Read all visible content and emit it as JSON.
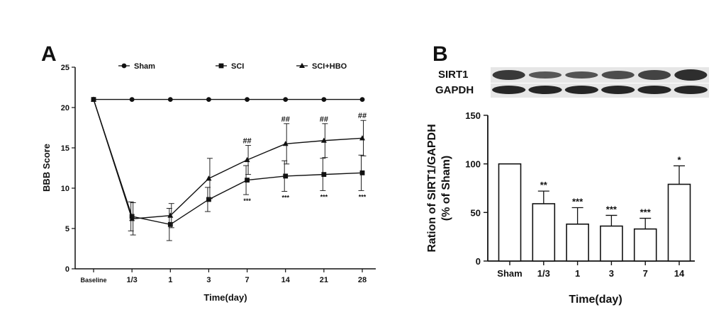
{
  "figure": {
    "panel_a_label": "A",
    "panel_b_label": "B",
    "blot": {
      "bands": [
        "SIRT1",
        "GAPDH"
      ],
      "lanes": 6
    }
  },
  "chart_data": [
    {
      "type": "line",
      "panel": "A",
      "xlabel": "Time(day)",
      "ylabel": "BBB Score",
      "categories": [
        "Baseline",
        "1/3",
        "1",
        "3",
        "7",
        "14",
        "21",
        "28"
      ],
      "ylim": [
        0,
        25
      ],
      "yticks": [
        0,
        5,
        10,
        15,
        20,
        25
      ],
      "legend_position": "top",
      "series": [
        {
          "name": "Sham",
          "marker": "circle",
          "values": [
            21,
            21,
            21,
            21,
            21,
            21,
            21,
            21
          ],
          "errors": [
            0,
            0,
            0,
            0,
            0,
            0,
            0,
            0
          ]
        },
        {
          "name": "SCI",
          "marker": "square",
          "values": [
            21,
            6.5,
            5.5,
            8.6,
            11.0,
            11.5,
            11.7,
            11.9
          ],
          "errors": [
            0,
            1.8,
            2.0,
            1.5,
            1.8,
            1.9,
            2.0,
            2.2
          ]
        },
        {
          "name": "SCI+HBO",
          "marker": "triangle",
          "values": [
            21,
            6.2,
            6.6,
            11.2,
            13.5,
            15.5,
            15.9,
            16.2
          ],
          "errors": [
            0,
            2.0,
            1.5,
            2.5,
            1.8,
            2.5,
            2.1,
            2.2
          ]
        }
      ],
      "annotations": [
        {
          "category": "7",
          "above": "##",
          "below": "***"
        },
        {
          "category": "14",
          "above": "##",
          "below": "***"
        },
        {
          "category": "21",
          "above": "##",
          "below": "***"
        },
        {
          "category": "28",
          "above": "##",
          "below": "***"
        }
      ]
    },
    {
      "type": "bar",
      "panel": "B",
      "xlabel": "Time(day)",
      "ylabel": "Ration of SIRT1/GAPDH (% of Sham)",
      "ylabel_lines": [
        "Ration of SIRT1/GAPDH",
        "(% of Sham)"
      ],
      "categories": [
        "Sham",
        "1/3",
        "1",
        "3",
        "7",
        "14"
      ],
      "values": [
        100,
        59,
        38,
        36,
        33,
        79
      ],
      "errors": [
        0,
        13,
        17,
        11,
        11,
        19
      ],
      "significance": [
        "",
        "**",
        "***",
        "***",
        "***",
        "*"
      ],
      "ylim": [
        0,
        150
      ],
      "yticks": [
        0,
        50,
        100,
        150
      ]
    }
  ]
}
